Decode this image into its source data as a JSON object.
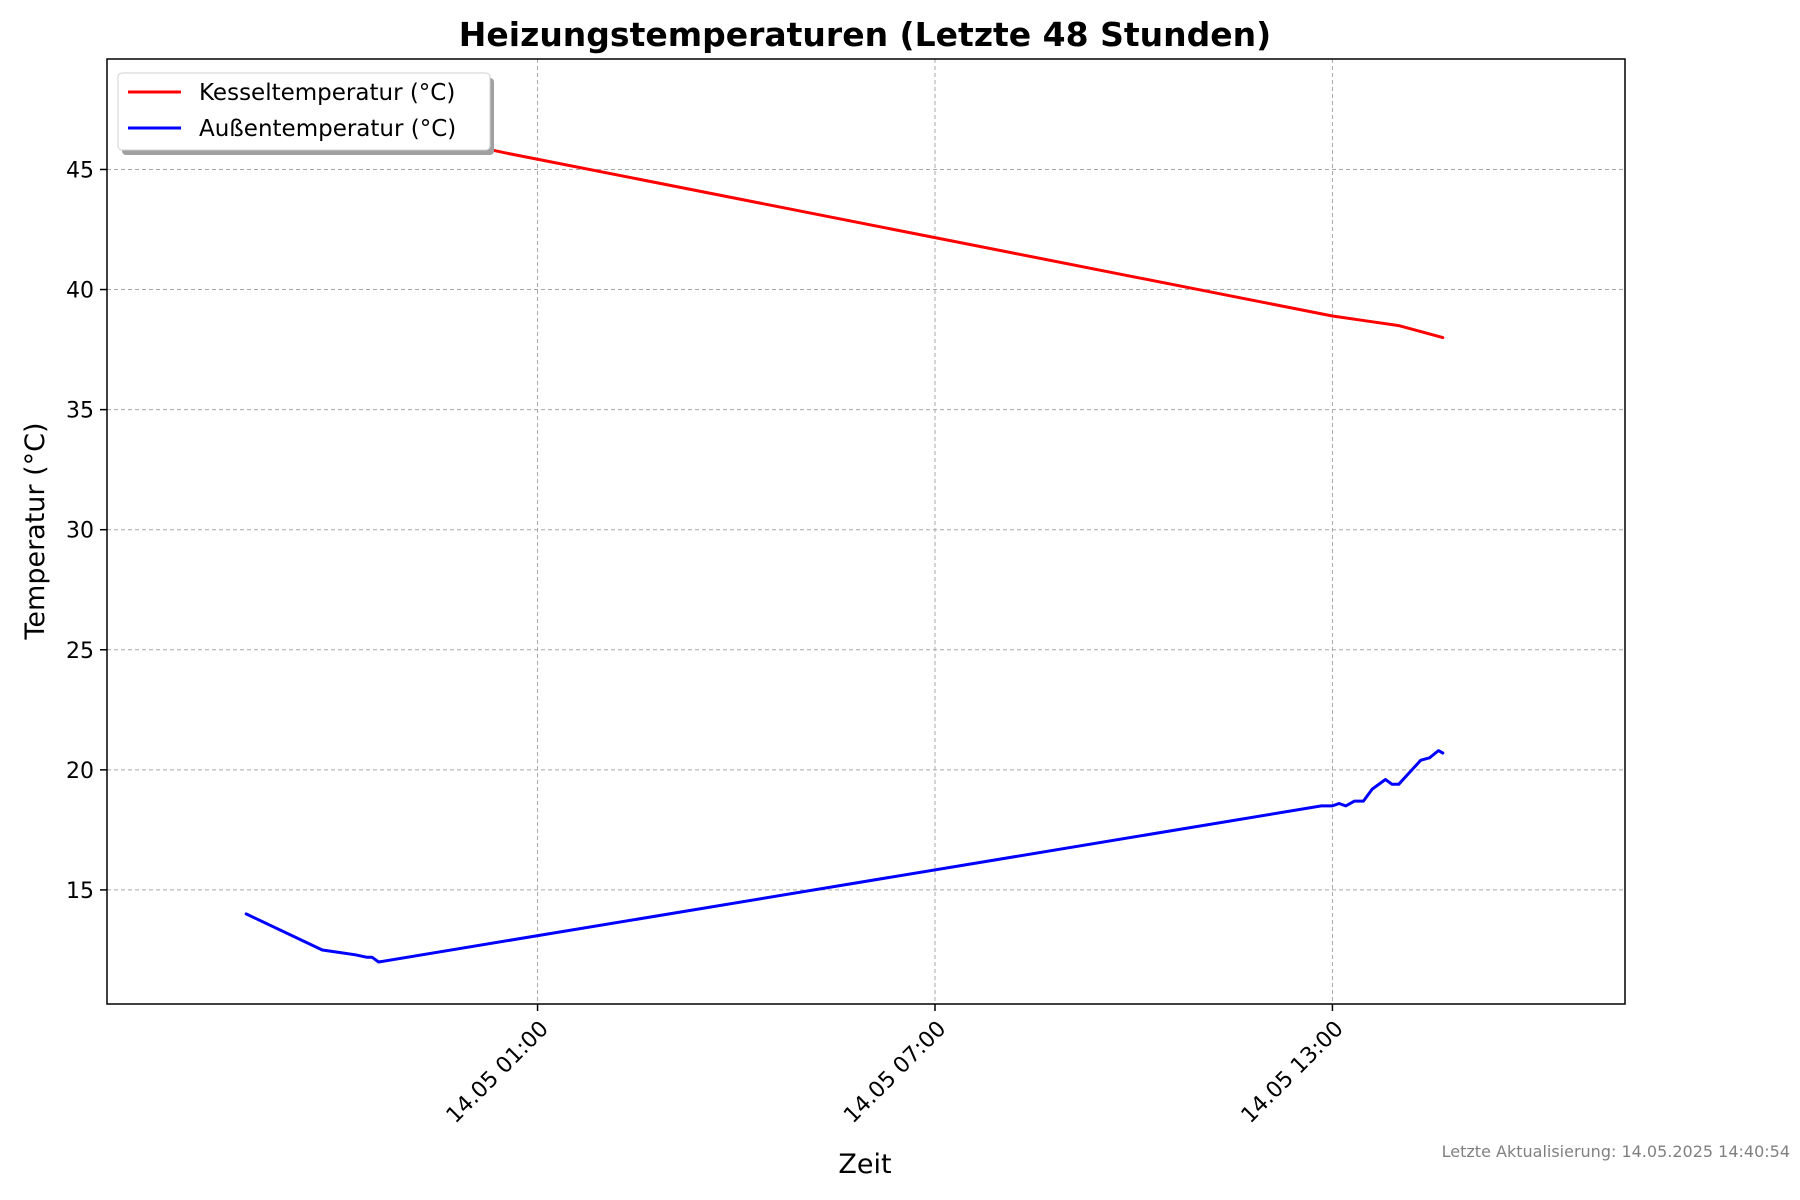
{
  "chart_data": {
    "type": "line",
    "title": "Heizungstemperaturen (Letzte 48 Stunden)",
    "xlabel": "Zeit",
    "ylabel": "Temperatur (°C)",
    "x_axis_type": "datetime",
    "xlim": [
      "2025-05-13 18:30",
      "2025-05-14 17:25"
    ],
    "ylim": [
      10.25,
      49.6
    ],
    "x_ticks": [
      {
        "value": "2025-05-14 01:00",
        "label": "14.05 01:00"
      },
      {
        "value": "2025-05-14 07:00",
        "label": "14.05 07:00"
      },
      {
        "value": "2025-05-14 13:00",
        "label": "14.05 13:00"
      }
    ],
    "y_ticks": [
      15,
      20,
      25,
      30,
      35,
      40,
      45
    ],
    "grid": true,
    "legend_position": "top-left",
    "series": [
      {
        "name": "Kesseltemperatur (°C)",
        "color": "#ff0000",
        "points": [
          [
            "2025-05-13 20:36",
            48.0
          ],
          [
            "2025-05-14 00:30",
            45.7
          ],
          [
            "2025-05-14 13:00",
            38.9
          ],
          [
            "2025-05-14 13:30",
            38.7
          ],
          [
            "2025-05-14 14:00",
            38.5
          ],
          [
            "2025-05-14 14:40",
            38.0
          ]
        ]
      },
      {
        "name": "Außentemperatur (°C)",
        "color": "#0000ff",
        "points": [
          [
            "2025-05-13 20:36",
            14.0
          ],
          [
            "2025-05-13 21:45",
            12.5
          ],
          [
            "2025-05-13 22:00",
            12.4
          ],
          [
            "2025-05-13 22:15",
            12.3
          ],
          [
            "2025-05-13 22:25",
            12.2
          ],
          [
            "2025-05-13 22:30",
            12.2
          ],
          [
            "2025-05-13 22:36",
            12.0
          ],
          [
            "2025-05-14 12:50",
            18.5
          ],
          [
            "2025-05-14 13:00",
            18.5
          ],
          [
            "2025-05-14 13:06",
            18.6
          ],
          [
            "2025-05-14 13:12",
            18.5
          ],
          [
            "2025-05-14 13:20",
            18.7
          ],
          [
            "2025-05-14 13:28",
            18.7
          ],
          [
            "2025-05-14 13:36",
            19.2
          ],
          [
            "2025-05-14 13:48",
            19.6
          ],
          [
            "2025-05-14 13:54",
            19.4
          ],
          [
            "2025-05-14 14:00",
            19.4
          ],
          [
            "2025-05-14 14:12",
            20.0
          ],
          [
            "2025-05-14 14:20",
            20.4
          ],
          [
            "2025-05-14 14:28",
            20.5
          ],
          [
            "2025-05-14 14:36",
            20.8
          ],
          [
            "2025-05-14 14:40",
            20.7
          ]
        ]
      }
    ]
  },
  "footer": {
    "last_update": "Letzte Aktualisierung: 14.05.2025 14:40:54"
  }
}
